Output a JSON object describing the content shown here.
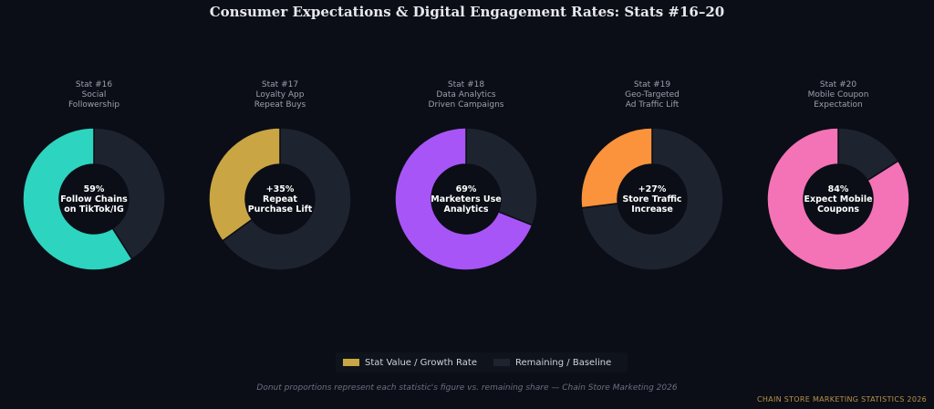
{
  "title": "Consumer Expectations & Digital Engagement Rates: Stats #16–20",
  "chart_data": [
    {
      "type": "pie",
      "title_lines": [
        "Stat #16",
        "Social",
        "Followership"
      ],
      "center_lines": [
        "59%",
        "Follow Chains",
        "on TikTok/IG"
      ],
      "value": 59,
      "remaining": 41,
      "color": "#2dd4bf"
    },
    {
      "type": "pie",
      "title_lines": [
        "Stat #17",
        "Loyalty App",
        "Repeat Buys"
      ],
      "center_lines": [
        "+35%",
        "Repeat",
        "Purchase Lift"
      ],
      "value": 35,
      "remaining": 65,
      "color": "#c9a544"
    },
    {
      "type": "pie",
      "title_lines": [
        "Stat #18",
        "Data Analytics",
        "Driven Campaigns"
      ],
      "center_lines": [
        "69%",
        "Marketers Use",
        "Analytics"
      ],
      "value": 69,
      "remaining": 31,
      "color": "#a855f7"
    },
    {
      "type": "pie",
      "title_lines": [
        "Stat #19",
        "Geo-Targeted",
        "Ad Traffic Lift"
      ],
      "center_lines": [
        "+27%",
        "Store Traffic",
        "Increase"
      ],
      "value": 27,
      "remaining": 73,
      "color": "#fb923c"
    },
    {
      "type": "pie",
      "title_lines": [
        "Stat #20",
        "Mobile Coupon",
        "Expectation"
      ],
      "center_lines": [
        "84%",
        "Expect Mobile",
        "Coupons"
      ],
      "value": 84,
      "remaining": 16,
      "color": "#f472b6"
    }
  ],
  "legend": {
    "placement": "bottom-center",
    "items": [
      {
        "label": "Stat Value / Growth Rate",
        "color": "#c9a544"
      },
      {
        "label": "Remaining / Baseline",
        "color": "#1e2330"
      }
    ]
  },
  "remaining_color": "#1e2330",
  "caption": "Donut proportions represent each statistic's figure vs. remaining share — Chain Store Marketing 2026",
  "watermark": "CHAIN STORE MARKETING STATISTICS 2026"
}
